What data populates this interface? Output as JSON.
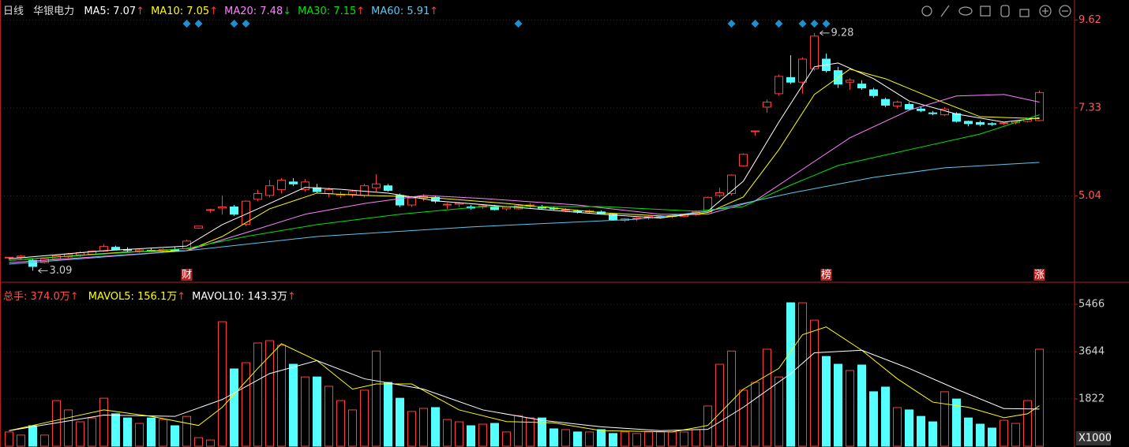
{
  "chart_data": [
    {
      "type": "candlestick",
      "period": "日线",
      "stock": "华银电力",
      "up_color": "#ff3c3c",
      "down_color": "#54ffff",
      "ylim": [
        2.83,
        10.14
      ],
      "yticks": [
        9.62,
        7.33,
        5.04
      ],
      "grid": true,
      "ohlc": [
        [
          3.42,
          3.45,
          3.38,
          3.44
        ],
        [
          3.44,
          3.5,
          3.4,
          3.47
        ],
        [
          3.36,
          3.4,
          3.09,
          3.2
        ],
        [
          3.3,
          3.42,
          3.28,
          3.4
        ],
        [
          3.4,
          3.5,
          3.38,
          3.48
        ],
        [
          3.45,
          3.55,
          3.42,
          3.52
        ],
        [
          3.5,
          3.6,
          3.45,
          3.56
        ],
        [
          3.52,
          3.62,
          3.5,
          3.6
        ],
        [
          3.6,
          3.78,
          3.58,
          3.72
        ],
        [
          3.7,
          3.74,
          3.62,
          3.64
        ],
        [
          3.64,
          3.7,
          3.58,
          3.62
        ],
        [
          3.6,
          3.66,
          3.56,
          3.63
        ],
        [
          3.62,
          3.68,
          3.58,
          3.6
        ],
        [
          3.6,
          3.67,
          3.56,
          3.64
        ],
        [
          3.64,
          3.7,
          3.58,
          3.6
        ],
        [
          3.66,
          3.9,
          3.64,
          3.86
        ],
        [
          4.2,
          4.26,
          4.18,
          4.25
        ],
        [
          4.66,
          4.7,
          4.6,
          4.68
        ],
        [
          4.72,
          5.05,
          4.55,
          4.75
        ],
        [
          4.75,
          4.8,
          4.52,
          4.56
        ],
        [
          4.3,
          4.92,
          4.25,
          4.9
        ],
        [
          4.95,
          5.2,
          4.9,
          5.1
        ],
        [
          5.05,
          5.45,
          5.0,
          5.3
        ],
        [
          5.2,
          5.5,
          5.1,
          5.45
        ],
        [
          5.4,
          5.5,
          5.3,
          5.35
        ],
        [
          5.2,
          5.48,
          5.15,
          5.4
        ],
        [
          5.25,
          5.35,
          5.1,
          5.15
        ],
        [
          5.1,
          5.25,
          5.0,
          5.2
        ],
        [
          5.05,
          5.15,
          4.98,
          5.08
        ],
        [
          5.08,
          5.2,
          5.0,
          5.15
        ],
        [
          5.05,
          5.35,
          5.0,
          5.3
        ],
        [
          5.25,
          5.6,
          5.15,
          5.35
        ],
        [
          5.3,
          5.35,
          5.15,
          5.18
        ],
        [
          5.05,
          5.1,
          4.75,
          4.8
        ],
        [
          4.8,
          5.0,
          4.75,
          4.98
        ],
        [
          4.98,
          5.08,
          4.9,
          5.02
        ],
        [
          5.0,
          5.05,
          4.85,
          4.9
        ],
        [
          4.8,
          4.85,
          4.7,
          4.82
        ],
        [
          4.82,
          4.88,
          4.75,
          4.85
        ],
        [
          4.75,
          4.8,
          4.68,
          4.72
        ],
        [
          4.75,
          4.82,
          4.7,
          4.78
        ],
        [
          4.76,
          4.8,
          4.66,
          4.68
        ],
        [
          4.7,
          4.78,
          4.65,
          4.74
        ],
        [
          4.7,
          4.82,
          4.68,
          4.78
        ],
        [
          4.78,
          4.85,
          4.72,
          4.8
        ],
        [
          4.75,
          4.8,
          4.68,
          4.72
        ],
        [
          4.72,
          4.76,
          4.66,
          4.7
        ],
        [
          4.66,
          4.72,
          4.62,
          4.68
        ],
        [
          4.64,
          4.68,
          4.58,
          4.62
        ],
        [
          4.62,
          4.68,
          4.58,
          4.65
        ],
        [
          4.62,
          4.66,
          4.56,
          4.58
        ],
        [
          4.56,
          4.58,
          4.4,
          4.42
        ],
        [
          4.4,
          4.46,
          4.36,
          4.44
        ],
        [
          4.44,
          4.48,
          4.38,
          4.46
        ],
        [
          4.46,
          4.52,
          4.42,
          4.5
        ],
        [
          4.48,
          4.52,
          4.44,
          4.5
        ],
        [
          4.5,
          4.55,
          4.46,
          4.52
        ],
        [
          4.5,
          4.56,
          4.48,
          4.54
        ],
        [
          4.55,
          4.66,
          4.52,
          4.62
        ],
        [
          4.62,
          5.02,
          4.6,
          5.0
        ],
        [
          5.05,
          5.25,
          5.0,
          5.12
        ],
        [
          5.1,
          5.6,
          5.05,
          5.58
        ],
        [
          5.82,
          6.15,
          5.8,
          6.12
        ],
        [
          6.72,
          6.73,
          6.6,
          6.73
        ],
        [
          7.35,
          7.55,
          7.2,
          7.48
        ],
        [
          7.7,
          8.2,
          7.65,
          8.15
        ],
        [
          8.12,
          8.7,
          7.95,
          8.0
        ],
        [
          8.0,
          8.65,
          7.7,
          8.6
        ],
        [
          8.35,
          9.28,
          8.3,
          9.2
        ],
        [
          8.6,
          8.75,
          8.25,
          8.3
        ],
        [
          8.3,
          8.4,
          7.85,
          7.95
        ],
        [
          8.0,
          8.1,
          7.8,
          8.05
        ],
        [
          7.95,
          8.05,
          7.8,
          7.85
        ],
        [
          7.8,
          7.85,
          7.6,
          7.65
        ],
        [
          7.55,
          7.6,
          7.35,
          7.4
        ],
        [
          7.38,
          7.52,
          7.32,
          7.48
        ],
        [
          7.42,
          7.48,
          7.28,
          7.3
        ],
        [
          7.3,
          7.36,
          7.22,
          7.26
        ],
        [
          7.2,
          7.25,
          7.14,
          7.18
        ],
        [
          7.15,
          7.35,
          7.12,
          7.3
        ],
        [
          7.18,
          7.22,
          6.95,
          6.98
        ],
        [
          6.98,
          7.0,
          6.85,
          6.92
        ],
        [
          6.95,
          7.0,
          6.85,
          6.9
        ],
        [
          6.92,
          6.96,
          6.86,
          6.9
        ],
        [
          6.92,
          6.96,
          6.88,
          6.94
        ],
        [
          6.94,
          7.0,
          6.9,
          6.98
        ],
        [
          6.98,
          7.05,
          6.95,
          7.03
        ],
        [
          7.0,
          7.78,
          6.98,
          7.73
        ]
      ],
      "series": [
        {
          "name": "MA5:",
          "value": 7.07,
          "arrow": "↑",
          "arrow_color": "#ff3c3c",
          "color": "#ffffff",
          "x": [
            0,
            8,
            15,
            18,
            21,
            25,
            28,
            32,
            36,
            42,
            50,
            55,
            59,
            62,
            65,
            68,
            70,
            73,
            76,
            80,
            84,
            87
          ],
          "values": [
            3.4,
            3.61,
            3.73,
            4.29,
            4.7,
            5.26,
            5.21,
            5.11,
            4.91,
            4.76,
            4.56,
            4.46,
            4.64,
            5.42,
            6.96,
            8.4,
            8.5,
            8.09,
            7.51,
            7.17,
            6.96,
            7.07
          ]
        },
        {
          "name": "MA10:",
          "value": 7.05,
          "arrow": "↑",
          "arrow_color": "#ff3c3c",
          "color": "#ffff00",
          "x": [
            0,
            10,
            15,
            18,
            22,
            26,
            30,
            35,
            42,
            50,
            56,
            59,
            62,
            65,
            68,
            71,
            74,
            78,
            82,
            87
          ],
          "values": [
            3.36,
            3.58,
            3.61,
            3.98,
            4.7,
            5.11,
            5.05,
            5.01,
            4.84,
            4.6,
            4.5,
            4.6,
            5.01,
            6.24,
            7.68,
            8.34,
            8.09,
            7.58,
            7.1,
            7.05
          ]
        },
        {
          "name": "MA20:",
          "value": 7.48,
          "arrow": "↓",
          "arrow_color": "#00d000",
          "color": "#ff80ff",
          "x": [
            0,
            15,
            20,
            25,
            30,
            35,
            40,
            48,
            55,
            59,
            63,
            67,
            71,
            76,
            80,
            84,
            87
          ],
          "values": [
            3.3,
            3.61,
            4.08,
            4.56,
            4.84,
            5.05,
            4.97,
            4.8,
            4.56,
            4.56,
            4.91,
            5.73,
            6.55,
            7.27,
            7.64,
            7.68,
            7.48
          ]
        },
        {
          "name": "MA30:",
          "value": 7.15,
          "arrow": "↑",
          "arrow_color": "#ff3c3c",
          "color": "#00e600",
          "x": [
            0,
            15,
            20,
            26,
            33,
            40,
            50,
            58,
            62,
            66,
            70,
            76,
            82,
            87
          ],
          "values": [
            3.36,
            3.67,
            3.98,
            4.29,
            4.56,
            4.76,
            4.76,
            4.64,
            4.76,
            5.32,
            5.83,
            6.24,
            6.65,
            7.15
          ]
        },
        {
          "name": "MA60:",
          "value": 5.91,
          "arrow": "↑",
          "arrow_color": "#ff3c3c",
          "color": "#5ac8f0",
          "x": [
            0,
            15,
            26,
            39,
            53,
            59,
            66,
            73,
            79,
            87
          ],
          "values": [
            3.26,
            3.61,
            3.98,
            4.23,
            4.43,
            4.64,
            5.11,
            5.52,
            5.77,
            5.91
          ]
        }
      ],
      "signals": [
        15,
        16,
        19,
        20,
        43,
        61,
        63,
        65,
        67,
        68,
        69
      ],
      "signal_color": "#1e90d0",
      "events": [
        {
          "index": 15,
          "label": "财"
        },
        {
          "index": 69,
          "label": "榜"
        },
        {
          "index": 87,
          "label": "涨"
        }
      ],
      "max": {
        "index": 68,
        "value": 9.28
      },
      "min": {
        "index": 2,
        "value": 3.09
      }
    },
    {
      "type": "bar",
      "title": "总手:",
      "value": 3740,
      "value_label": "374.0万",
      "arrow": "↑",
      "arrow_color": "#ff3c3c",
      "ylim": [
        0,
        6200
      ],
      "yticks": [
        5466,
        3644,
        1822
      ],
      "grid": true,
      "unit": "X1000",
      "values": [
        550,
        430,
        790,
        430,
        1760,
        1400,
        940,
        1090,
        1850,
        1250,
        1090,
        880,
        1090,
        1030,
        790,
        1150,
        330,
        240,
        4800,
        2980,
        3220,
        3980,
        4070,
        3890,
        3160,
        2670,
        2670,
        2310,
        1760,
        1400,
        2160,
        3670,
        2460,
        1850,
        1340,
        1460,
        1490,
        1030,
        940,
        790,
        850,
        880,
        550,
        1180,
        1090,
        1090,
        670,
        640,
        550,
        550,
        640,
        490,
        550,
        490,
        550,
        550,
        550,
        550,
        640,
        1550,
        3160,
        3670,
        2160,
        2460,
        3740,
        2670,
        5530,
        5530,
        4860,
        3460,
        3160,
        2920,
        3130,
        2100,
        2280,
        1490,
        1400,
        1150,
        940,
        2100,
        1820,
        1090,
        850,
        700,
        1000,
        880,
        1760,
        3740
      ],
      "series": [
        {
          "name": "MAVOL5:",
          "value": 1561,
          "value_label": "156.1万",
          "arrow": "↑",
          "arrow_color": "#ff3c3c",
          "color": "#ffff00",
          "x": [
            0,
            5,
            8,
            12,
            16,
            18,
            21,
            23,
            26,
            29,
            31,
            34,
            38,
            42,
            46,
            50,
            56,
            59,
            62,
            65,
            67,
            69,
            72,
            75,
            78,
            81,
            84,
            86,
            87
          ],
          "values": [
            600,
            1100,
            1400,
            1150,
            800,
            1500,
            3000,
            3950,
            3300,
            2200,
            2400,
            2400,
            1400,
            950,
            900,
            600,
            550,
            800,
            2200,
            3000,
            4300,
            4600,
            3700,
            2600,
            1700,
            1500,
            1100,
            1250,
            1561
          ]
        },
        {
          "name": "MAVOL10:",
          "value": 1433,
          "value_label": "143.3万",
          "arrow": "↑",
          "arrow_color": "#ff3c3c",
          "color": "#ffffff",
          "x": [
            0,
            8,
            14,
            18,
            22,
            26,
            30,
            35,
            40,
            45,
            50,
            55,
            59,
            62,
            66,
            68,
            72,
            76,
            80,
            84,
            87
          ],
          "values": [
            600,
            1200,
            1150,
            1800,
            2800,
            3300,
            2600,
            2200,
            1400,
            1000,
            750,
            600,
            650,
            1500,
            2800,
            3600,
            3700,
            3000,
            2200,
            1450,
            1433
          ]
        }
      ]
    }
  ]
}
